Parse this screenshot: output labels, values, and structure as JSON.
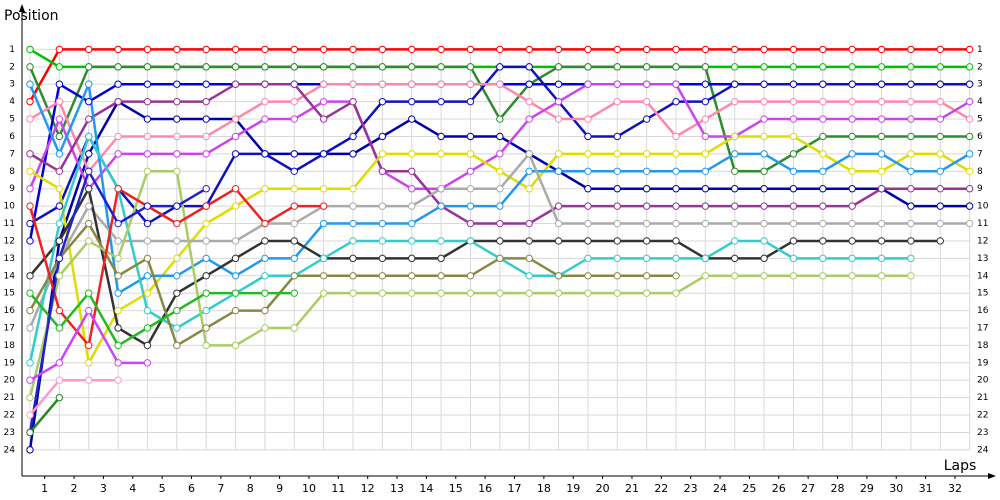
{
  "chart_data": {
    "type": "line",
    "y_label": "Position",
    "x_label": "Laps",
    "x": [
      0,
      1,
      2,
      3,
      4,
      5,
      6,
      7,
      8,
      9,
      10,
      11,
      12,
      13,
      14,
      15,
      16,
      17,
      18,
      19,
      20,
      21,
      22,
      23,
      24,
      25,
      26,
      27,
      28,
      29,
      30,
      31,
      32
    ],
    "xlim": [
      0,
      33
    ],
    "ylim": [
      0,
      25.5
    ],
    "invert_y": true,
    "grid": true,
    "xticks": [
      {
        "value": 0.5,
        "label": "1"
      },
      {
        "value": 1.5,
        "label": "2"
      },
      {
        "value": 2.5,
        "label": "3"
      },
      {
        "value": 3.5,
        "label": "4"
      },
      {
        "value": 4.5,
        "label": "5"
      },
      {
        "value": 5.5,
        "label": "6"
      },
      {
        "value": 6.5,
        "label": "7"
      },
      {
        "value": 7.5,
        "label": "8"
      },
      {
        "value": 8.5,
        "label": "9"
      },
      {
        "value": 9.5,
        "label": "10"
      },
      {
        "value": 10.5,
        "label": "11"
      },
      {
        "value": 11.5,
        "label": "12"
      },
      {
        "value": 12.5,
        "label": "13"
      },
      {
        "value": 13.5,
        "label": "14"
      },
      {
        "value": 14.5,
        "label": "15"
      },
      {
        "value": 15.5,
        "label": "16"
      },
      {
        "value": 16.5,
        "label": "17"
      },
      {
        "value": 17.5,
        "label": "18"
      },
      {
        "value": 18.5,
        "label": "19"
      },
      {
        "value": 19.5,
        "label": "20"
      },
      {
        "value": 20.5,
        "label": "21"
      },
      {
        "value": 21.5,
        "label": "22"
      },
      {
        "value": 22.5,
        "label": "23"
      },
      {
        "value": 23.5,
        "label": "24"
      },
      {
        "value": 24.5,
        "label": "25"
      },
      {
        "value": 25.5,
        "label": "26"
      },
      {
        "value": 26.5,
        "label": "27"
      },
      {
        "value": 27.5,
        "label": "28"
      },
      {
        "value": 28.5,
        "label": "29"
      },
      {
        "value": 29.5,
        "label": "30"
      },
      {
        "value": 30.5,
        "label": "31"
      },
      {
        "value": 31.5,
        "label": "32"
      }
    ],
    "yticks": [
      1,
      2,
      3,
      4,
      5,
      6,
      7,
      8,
      9,
      10,
      11,
      12,
      13,
      14,
      15,
      16,
      17,
      18,
      19,
      20,
      21,
      22,
      23,
      24
    ],
    "series": [
      {
        "color": "#ff0000",
        "values": [
          4,
          1,
          1,
          1,
          1,
          1,
          1,
          1,
          1,
          1,
          1,
          1,
          1,
          1,
          1,
          1,
          1,
          1,
          1,
          1,
          1,
          1,
          1,
          1,
          1,
          1,
          1,
          1,
          1,
          1,
          1,
          1,
          1
        ]
      },
      {
        "color": "#00c000",
        "values": [
          1,
          2,
          2,
          2,
          2,
          2,
          2,
          2,
          2,
          2,
          2,
          2,
          2,
          2,
          2,
          2,
          2,
          2,
          2,
          2,
          2,
          2,
          2,
          2,
          2,
          2,
          2,
          2,
          2,
          2,
          2,
          2,
          2
        ]
      },
      {
        "color": "#2e8b2e",
        "values": [
          2,
          6,
          2,
          2,
          2,
          2,
          2,
          2,
          2,
          2,
          2,
          2,
          2,
          2,
          2,
          2,
          5,
          3,
          2,
          2,
          2,
          2,
          2,
          2,
          8,
          8,
          7,
          6,
          6,
          6,
          6,
          6,
          6
        ]
      },
      {
        "color": "#0000dd",
        "values": [
          12,
          3,
          4,
          3,
          3,
          3,
          3,
          3,
          3,
          3,
          3,
          3,
          3,
          3,
          3,
          3,
          3,
          3,
          3,
          3,
          3,
          3,
          3,
          3,
          3,
          3,
          3,
          3,
          3,
          3,
          3,
          3,
          3
        ]
      },
      {
        "color": "#0000aa",
        "values": [
          24,
          12,
          7,
          4,
          5,
          5,
          5,
          5,
          7,
          7,
          7,
          7,
          6,
          5,
          6,
          6,
          6,
          7,
          8,
          9,
          9,
          9,
          9,
          9,
          9,
          9,
          9,
          9,
          9,
          9,
          10,
          10,
          10
        ]
      },
      {
        "color": "#1010c0",
        "values": [
          11,
          10,
          6,
          9,
          11,
          10,
          10,
          7,
          7,
          8,
          7,
          6,
          4,
          4,
          4,
          4,
          2,
          2,
          4,
          6,
          6,
          5,
          4,
          4,
          3,
          3,
          3,
          3,
          3,
          3,
          3,
          3,
          3
        ]
      },
      {
        "color": "#ff88aa",
        "values": [
          5,
          4,
          8,
          6,
          6,
          6,
          6,
          5,
          4,
          4,
          3,
          3,
          3,
          3,
          3,
          3,
          3,
          4,
          5,
          5,
          4,
          4,
          6,
          5,
          4,
          4,
          4,
          4,
          4,
          4,
          4,
          4,
          5
        ]
      },
      {
        "color": "#cc44ee",
        "values": [
          9,
          5,
          9,
          7,
          7,
          7,
          7,
          6,
          5,
          5,
          4,
          4,
          8,
          9,
          9,
          8,
          7,
          5,
          4,
          3,
          3,
          3,
          3,
          6,
          6,
          5,
          5,
          5,
          5,
          5,
          5,
          5,
          4
        ]
      },
      {
        "color": "#993399",
        "values": [
          7,
          8,
          5,
          4,
          4,
          4,
          4,
          3,
          3,
          3,
          5,
          4,
          8,
          8,
          10,
          11,
          11,
          11,
          10,
          10,
          10,
          10,
          10,
          10,
          10,
          10,
          10,
          10,
          10,
          9,
          9,
          9,
          9
        ]
      },
      {
        "color": "#dddd00",
        "values": [
          8,
          9,
          19,
          16,
          15,
          13,
          11,
          10,
          9,
          9,
          9,
          9,
          7,
          7,
          7,
          7,
          8,
          9,
          7,
          7,
          7,
          7,
          7,
          7,
          6,
          6,
          6,
          7,
          8,
          8,
          7,
          7,
          8
        ]
      },
      {
        "color": "#2299ee",
        "values": [
          3,
          7,
          3,
          15,
          14,
          14,
          13,
          14,
          13,
          13,
          11,
          11,
          11,
          11,
          10,
          10,
          10,
          8,
          8,
          8,
          8,
          8,
          8,
          8,
          7,
          7,
          8,
          8,
          7,
          7,
          8,
          8,
          7
        ]
      },
      {
        "color": "#aaaaaa",
        "values": [
          17,
          13,
          10,
          12,
          12,
          12,
          12,
          12,
          11,
          11,
          10,
          10,
          10,
          10,
          9,
          9,
          9,
          7,
          11,
          11,
          11,
          11,
          11,
          11,
          11,
          11,
          11,
          11,
          11,
          11,
          11,
          11,
          11
        ]
      },
      {
        "color": "#333333",
        "values": [
          14,
          12,
          9,
          17,
          18,
          15,
          14,
          13,
          12,
          12,
          13,
          13,
          13,
          13,
          13,
          12,
          12,
          12,
          12,
          12,
          12,
          12,
          12,
          13,
          13,
          13,
          12,
          12,
          12,
          12,
          12,
          12,
          null
        ]
      },
      {
        "color": "#33cccc",
        "values": [
          19,
          11,
          6,
          9,
          16,
          17,
          16,
          15,
          14,
          14,
          13,
          12,
          12,
          12,
          12,
          12,
          13,
          14,
          14,
          13,
          13,
          13,
          13,
          13,
          12,
          12,
          13,
          13,
          13,
          13,
          13,
          null,
          null
        ]
      },
      {
        "color": "#888844",
        "values": [
          16,
          13,
          11,
          14,
          13,
          18,
          17,
          16,
          16,
          14,
          14,
          14,
          14,
          14,
          14,
          14,
          13,
          13,
          14,
          14,
          14,
          14,
          14,
          null,
          null,
          null,
          null,
          null,
          null,
          null,
          null,
          null,
          null
        ]
      },
      {
        "color": "#aacc66",
        "values": [
          21,
          14,
          12,
          13,
          8,
          8,
          18,
          18,
          17,
          17,
          15,
          15,
          15,
          15,
          15,
          15,
          15,
          15,
          15,
          15,
          15,
          15,
          15,
          14,
          14,
          14,
          14,
          14,
          14,
          14,
          14,
          null,
          null
        ]
      },
      {
        "color": "#ee2222",
        "values": [
          10,
          16,
          18,
          9,
          10,
          11,
          10,
          9,
          11,
          10,
          10,
          null,
          null,
          null,
          null,
          null,
          null,
          null,
          null,
          null,
          null,
          null,
          null,
          null,
          null,
          null,
          null,
          null,
          null,
          null,
          null,
          null,
          null
        ]
      },
      {
        "color": "#22bb22",
        "values": [
          15,
          17,
          15,
          18,
          17,
          16,
          15,
          15,
          15,
          15,
          null,
          null,
          null,
          null,
          null,
          null,
          null,
          null,
          null,
          null,
          null,
          null,
          null,
          null,
          null,
          null,
          null,
          null,
          null,
          null,
          null,
          null,
          null
        ]
      },
      {
        "color": "#2222cc",
        "values": [
          23,
          13,
          8,
          11,
          10,
          10,
          9,
          null,
          null,
          null,
          null,
          null,
          null,
          null,
          null,
          null,
          null,
          null,
          null,
          null,
          null,
          null,
          null,
          null,
          null,
          null,
          null,
          null,
          null,
          null,
          null,
          null,
          null
        ]
      },
      {
        "color": "#cc44ff",
        "values": [
          20,
          19,
          16,
          19,
          19,
          null,
          null,
          null,
          null,
          null,
          null,
          null,
          null,
          null,
          null,
          null,
          null,
          null,
          null,
          null,
          null,
          null,
          null,
          null,
          null,
          null,
          null,
          null,
          null,
          null,
          null,
          null,
          null
        ]
      },
      {
        "color": "#ff99cc",
        "values": [
          22,
          20,
          20,
          20,
          null,
          null,
          null,
          null,
          null,
          null,
          null,
          null,
          null,
          null,
          null,
          null,
          null,
          null,
          null,
          null,
          null,
          null,
          null,
          null,
          null,
          null,
          null,
          null,
          null,
          null,
          null,
          null,
          null
        ]
      },
      {
        "color": "#228822",
        "values": [
          23,
          21,
          null,
          null,
          null,
          null,
          null,
          null,
          null,
          null,
          null,
          null,
          null,
          null,
          null,
          null,
          null,
          null,
          null,
          null,
          null,
          null,
          null,
          null,
          null,
          null,
          null,
          null,
          null,
          null,
          null,
          null,
          null
        ]
      }
    ]
  }
}
